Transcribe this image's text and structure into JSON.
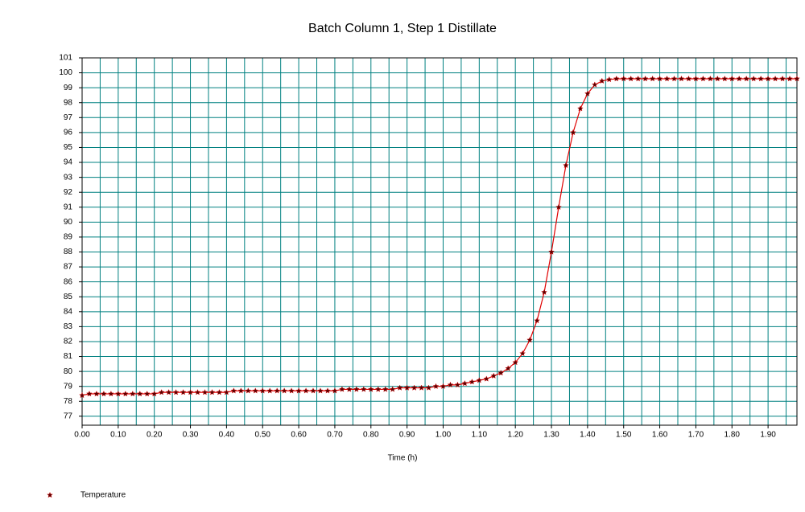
{
  "chart_data": {
    "type": "line",
    "title": "Batch Column 1, Step 1 Distillate",
    "x_label": "Time (h)",
    "x": [
      0,
      0.02,
      0.04,
      0.06,
      0.08,
      0.1,
      0.12,
      0.14,
      0.16,
      0.18,
      0.2,
      0.22,
      0.24,
      0.26,
      0.28,
      0.3,
      0.32,
      0.34,
      0.36,
      0.38,
      0.4,
      0.42,
      0.44,
      0.46,
      0.48,
      0.5,
      0.52,
      0.54,
      0.56,
      0.58,
      0.6,
      0.62,
      0.64,
      0.66,
      0.68,
      0.7,
      0.72,
      0.74,
      0.76,
      0.78,
      0.8,
      0.82,
      0.84,
      0.86,
      0.88,
      0.9,
      0.92,
      0.94,
      0.96,
      0.98,
      1,
      1.02,
      1.04,
      1.06,
      1.08,
      1.1,
      1.12,
      1.14,
      1.16,
      1.18,
      1.2,
      1.22,
      1.24,
      1.26,
      1.28,
      1.3,
      1.32,
      1.34,
      1.36,
      1.38,
      1.4,
      1.42,
      1.44,
      1.46,
      1.48,
      1.5,
      1.52,
      1.54,
      1.56,
      1.58,
      1.6,
      1.62,
      1.64,
      1.66,
      1.68,
      1.7,
      1.72,
      1.74,
      1.76,
      1.78,
      1.8,
      1.82,
      1.84,
      1.86,
      1.88,
      1.9,
      1.92,
      1.94,
      1.96,
      1.98
    ],
    "series": [
      {
        "name": "Temperature",
        "color": "#e00000",
        "marker_color": "#5a0000",
        "values": [
          78.4,
          78.5,
          78.5,
          78.5,
          78.5,
          78.5,
          78.5,
          78.5,
          78.5,
          78.5,
          78.5,
          78.6,
          78.6,
          78.6,
          78.6,
          78.6,
          78.6,
          78.6,
          78.6,
          78.6,
          78.6,
          78.7,
          78.7,
          78.7,
          78.7,
          78.7,
          78.7,
          78.7,
          78.7,
          78.7,
          78.7,
          78.7,
          78.7,
          78.7,
          78.7,
          78.7,
          78.8,
          78.8,
          78.8,
          78.8,
          78.8,
          78.8,
          78.8,
          78.8,
          78.9,
          78.9,
          78.9,
          78.9,
          78.9,
          79.0,
          79.0,
          79.1,
          79.1,
          79.2,
          79.3,
          79.4,
          79.5,
          79.7,
          79.9,
          80.2,
          80.6,
          81.2,
          82.1,
          83.4,
          85.3,
          88.0,
          91.0,
          93.8,
          96.0,
          97.6,
          98.6,
          99.2,
          99.45,
          99.55,
          99.6,
          99.6,
          99.6,
          99.6,
          99.6,
          99.6,
          99.6,
          99.6,
          99.6,
          99.6,
          99.6,
          99.6,
          99.6,
          99.6,
          99.6,
          99.6,
          99.6,
          99.6,
          99.6,
          99.6,
          99.6,
          99.6,
          99.6,
          99.6,
          99.6,
          99.6
        ]
      }
    ],
    "xlim": [
      0,
      1.98
    ],
    "ylim": [
      76.4,
      101
    ],
    "xticks": [
      {
        "value": 0,
        "label": "0.00"
      },
      {
        "value": 0.1,
        "label": "0.10"
      },
      {
        "value": 0.2,
        "label": "0.20"
      },
      {
        "value": 0.3,
        "label": "0.30"
      },
      {
        "value": 0.4,
        "label": "0.40"
      },
      {
        "value": 0.5,
        "label": "0.50"
      },
      {
        "value": 0.6,
        "label": "0.60"
      },
      {
        "value": 0.7,
        "label": "0.70"
      },
      {
        "value": 0.8,
        "label": "0.80"
      },
      {
        "value": 0.9,
        "label": "0.90"
      },
      {
        "value": 1,
        "label": "1.00"
      },
      {
        "value": 1.1,
        "label": "1.10"
      },
      {
        "value": 1.2,
        "label": "1.20"
      },
      {
        "value": 1.3,
        "label": "1.30"
      },
      {
        "value": 1.4,
        "label": "1.40"
      },
      {
        "value": 1.5,
        "label": "1.50"
      },
      {
        "value": 1.6,
        "label": "1.60"
      },
      {
        "value": 1.7,
        "label": "1.70"
      },
      {
        "value": 1.8,
        "label": "1.80"
      },
      {
        "value": 1.9,
        "label": "1.90"
      }
    ],
    "x_minor_grid": [
      0.05,
      0.15,
      0.25,
      0.35,
      0.45,
      0.55,
      0.65,
      0.75,
      0.85,
      0.95,
      1.05,
      1.15,
      1.25,
      1.35,
      1.45,
      1.55,
      1.65,
      1.75,
      1.85,
      1.95
    ],
    "yticks": [
      77,
      78,
      79,
      80,
      81,
      82,
      83,
      84,
      85,
      86,
      87,
      88,
      89,
      90,
      91,
      92,
      93,
      94,
      95,
      96,
      97,
      98,
      99,
      100,
      101
    ],
    "grid": true,
    "grid_color": "#008080",
    "legend": "bottom-left"
  }
}
